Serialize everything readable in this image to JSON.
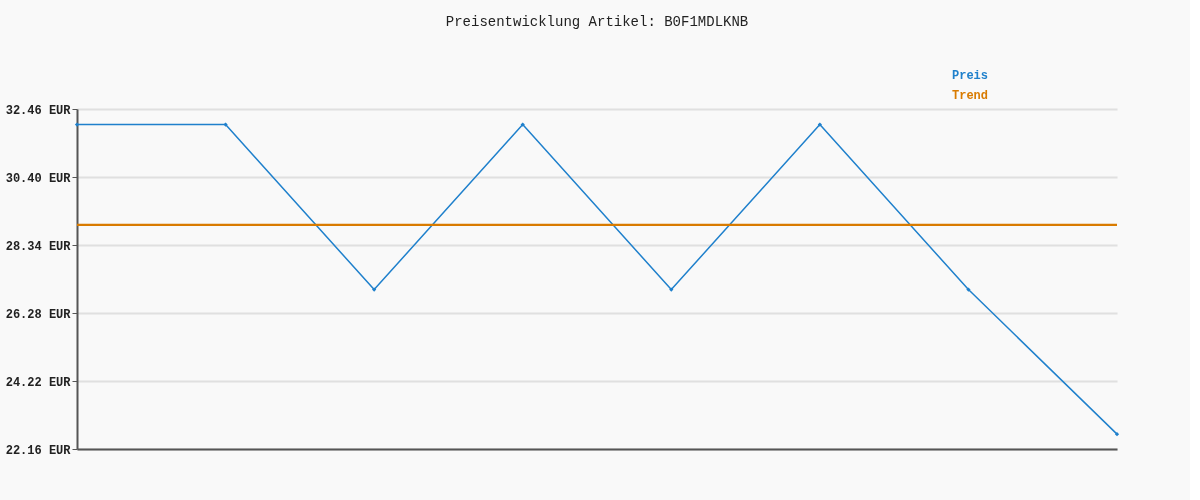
{
  "chart_data": {
    "type": "line",
    "title": "Preisentwicklung Artikel: B0F1MDLKNB",
    "categories": [
      null,
      null,
      null,
      null,
      null,
      null,
      null,
      null
    ],
    "series": [
      {
        "name": "Preis",
        "color": "#1f80cc",
        "values": [
          31.99,
          31.99,
          26.99,
          31.99,
          26.99,
          31.99,
          26.99,
          22.61
        ],
        "marker": "diamond"
      },
      {
        "name": "Trend",
        "color": "#d97b00",
        "values": [
          28.95,
          28.95,
          28.95,
          28.95,
          28.95,
          28.95,
          28.95,
          28.95
        ],
        "marker": "none"
      }
    ],
    "ylim": [
      22.16,
      32.46
    ],
    "yticks": [
      {
        "value": 22.16,
        "label": "22.16 EUR"
      },
      {
        "value": 24.22,
        "label": "24.22 EUR"
      },
      {
        "value": 26.28,
        "label": "26.28 EUR"
      },
      {
        "value": 28.34,
        "label": "28.34 EUR"
      },
      {
        "value": 30.4,
        "label": "30.40 EUR"
      },
      {
        "value": 32.46,
        "label": "32.46 EUR"
      }
    ],
    "grid": "y",
    "legend": "top right",
    "tick_labels": "y",
    "line_style": "solid"
  }
}
